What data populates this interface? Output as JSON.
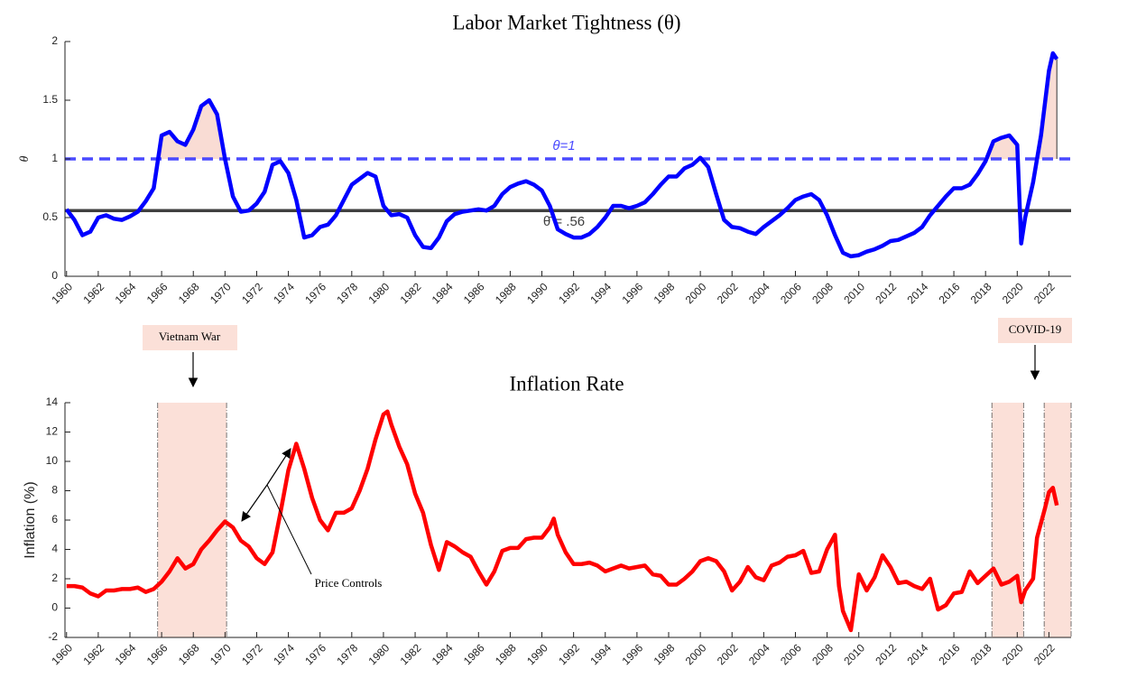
{
  "chart_data": [
    {
      "type": "line",
      "title": "Labor Market Tightness (θ)",
      "ylabel": "θ",
      "color": "#0000ff",
      "xlim": [
        1959.9,
        2023.4
      ],
      "ylim": [
        0,
        2
      ],
      "xticks": [
        1960,
        1962,
        1964,
        1966,
        1968,
        1970,
        1972,
        1974,
        1976,
        1978,
        1980,
        1982,
        1984,
        1986,
        1988,
        1990,
        1992,
        1994,
        1996,
        1998,
        2000,
        2002,
        2004,
        2006,
        2008,
        2010,
        2012,
        2014,
        2016,
        2018,
        2020,
        2022
      ],
      "yticks": [
        0,
        0.5,
        1,
        1.5,
        2
      ],
      "ref_lines": [
        {
          "value": 1,
          "label": "θ=1",
          "color": "#4a4aff",
          "dash": true
        },
        {
          "value": 0.56,
          "label": "θ̄ = .56",
          "color": "#404040",
          "dash": false
        }
      ],
      "shade": true,
      "shade_color": "#f9dcd4",
      "x": [
        1960,
        1960.5,
        1961,
        1961.5,
        1962,
        1962.5,
        1963,
        1963.5,
        1964,
        1964.5,
        1965,
        1965.5,
        1966,
        1966.5,
        1967,
        1967.5,
        1968,
        1968.5,
        1969,
        1969.5,
        1970,
        1970.5,
        1971,
        1971.5,
        1972,
        1972.5,
        1973,
        1973.5,
        1974,
        1974.5,
        1975,
        1975.5,
        1976,
        1976.5,
        1977,
        1977.5,
        1978,
        1978.5,
        1979,
        1979.5,
        1980,
        1980.5,
        1981,
        1981.5,
        1982,
        1982.5,
        1983,
        1983.5,
        1984,
        1984.5,
        1985,
        1985.5,
        1986,
        1986.5,
        1987,
        1987.5,
        1988,
        1988.5,
        1989,
        1989.5,
        1990,
        1990.5,
        1991,
        1991.5,
        1992,
        1992.5,
        1993,
        1993.5,
        1994,
        1994.5,
        1995,
        1995.5,
        1996,
        1996.5,
        1997,
        1997.5,
        1998,
        1998.5,
        1999,
        1999.5,
        2000,
        2000.5,
        2001,
        2001.5,
        2002,
        2002.5,
        2003,
        2003.5,
        2004,
        2004.5,
        2005,
        2005.5,
        2006,
        2006.5,
        2007,
        2007.5,
        2008,
        2008.5,
        2009,
        2009.5,
        2010,
        2010.5,
        2011,
        2011.5,
        2012,
        2012.5,
        2013,
        2013.5,
        2014,
        2014.5,
        2015,
        2015.5,
        2016,
        2016.5,
        2017,
        2017.5,
        2018,
        2018.5,
        2019,
        2019.5,
        2020,
        2020.25,
        2020.5,
        2021,
        2021.5,
        2022,
        2022.25,
        2022.5
      ],
      "values": [
        0.57,
        0.48,
        0.35,
        0.38,
        0.5,
        0.52,
        0.49,
        0.48,
        0.51,
        0.55,
        0.64,
        0.75,
        1.2,
        1.23,
        1.15,
        1.12,
        1.25,
        1.45,
        1.5,
        1.38,
        1.0,
        0.68,
        0.55,
        0.56,
        0.62,
        0.72,
        0.95,
        0.98,
        0.88,
        0.65,
        0.33,
        0.35,
        0.42,
        0.44,
        0.52,
        0.65,
        0.78,
        0.83,
        0.88,
        0.85,
        0.6,
        0.52,
        0.53,
        0.5,
        0.35,
        0.25,
        0.24,
        0.33,
        0.47,
        0.53,
        0.55,
        0.56,
        0.57,
        0.56,
        0.6,
        0.7,
        0.76,
        0.79,
        0.81,
        0.78,
        0.73,
        0.6,
        0.4,
        0.36,
        0.33,
        0.33,
        0.36,
        0.42,
        0.5,
        0.6,
        0.6,
        0.58,
        0.6,
        0.63,
        0.7,
        0.78,
        0.85,
        0.85,
        0.92,
        0.95,
        1.01,
        0.93,
        0.7,
        0.48,
        0.42,
        0.41,
        0.38,
        0.36,
        0.42,
        0.47,
        0.52,
        0.58,
        0.65,
        0.68,
        0.7,
        0.65,
        0.52,
        0.35,
        0.2,
        0.17,
        0.18,
        0.21,
        0.23,
        0.26,
        0.3,
        0.31,
        0.34,
        0.37,
        0.42,
        0.52,
        0.6,
        0.68,
        0.75,
        0.75,
        0.78,
        0.87,
        0.98,
        1.15,
        1.18,
        1.2,
        1.12,
        0.28,
        0.5,
        0.8,
        1.2,
        1.75,
        1.9,
        1.85
      ]
    },
    {
      "type": "line",
      "title": "Inflation Rate",
      "ylabel": "Inflation (%)",
      "color": "#ff0000",
      "xlim": [
        1959.9,
        2023.4
      ],
      "ylim": [
        -2,
        14
      ],
      "xticks": [
        1960,
        1962,
        1964,
        1966,
        1968,
        1970,
        1972,
        1974,
        1976,
        1978,
        1980,
        1982,
        1984,
        1986,
        1988,
        1990,
        1992,
        1994,
        1996,
        1998,
        2000,
        2002,
        2004,
        2006,
        2008,
        2010,
        2012,
        2014,
        2016,
        2018,
        2020,
        2022
      ],
      "yticks": [
        -2,
        0,
        2,
        4,
        6,
        8,
        10,
        12,
        14
      ],
      "shaded_periods": [
        [
          1965.75,
          1970.1
        ],
        [
          2018.4,
          2020.4
        ],
        [
          2021.7,
          2023.4
        ]
      ],
      "shade_color": "#fbe0d8",
      "annotations": [
        "Vietnam War",
        "COVID-19",
        "Price Controls"
      ],
      "x": [
        1960,
        1960.5,
        1961,
        1961.5,
        1962,
        1962.5,
        1963,
        1963.5,
        1964,
        1964.5,
        1965,
        1965.5,
        1966,
        1966.5,
        1967,
        1967.5,
        1968,
        1968.5,
        1969,
        1969.5,
        1970,
        1970.5,
        1971,
        1971.5,
        1972,
        1972.5,
        1973,
        1973.5,
        1974,
        1974.5,
        1975,
        1975.5,
        1976,
        1976.5,
        1977,
        1977.5,
        1978,
        1978.5,
        1979,
        1979.5,
        1980,
        1980.25,
        1980.5,
        1981,
        1981.5,
        1982,
        1982.5,
        1983,
        1983.5,
        1984,
        1984.5,
        1985,
        1985.5,
        1986,
        1986.5,
        1987,
        1987.5,
        1988,
        1988.5,
        1989,
        1989.5,
        1990,
        1990.5,
        1990.75,
        1991,
        1991.5,
        1992,
        1992.5,
        1993,
        1993.5,
        1994,
        1994.5,
        1995,
        1995.5,
        1996,
        1996.5,
        1997,
        1997.5,
        1998,
        1998.5,
        1999,
        1999.5,
        2000,
        2000.5,
        2001,
        2001.5,
        2002,
        2002.5,
        2003,
        2003.5,
        2004,
        2004.5,
        2005,
        2005.5,
        2006,
        2006.5,
        2007,
        2007.5,
        2008,
        2008.5,
        2008.75,
        2009,
        2009.5,
        2010,
        2010.5,
        2011,
        2011.5,
        2012,
        2012.5,
        2013,
        2013.5,
        2014,
        2014.5,
        2015,
        2015.5,
        2016,
        2016.5,
        2017,
        2017.5,
        2018,
        2018.5,
        2019,
        2019.5,
        2020,
        2020.25,
        2020.5,
        2021,
        2021.25,
        2021.75,
        2022,
        2022.25,
        2022.5
      ],
      "values": [
        1.5,
        1.5,
        1.4,
        1.0,
        0.8,
        1.2,
        1.2,
        1.3,
        1.3,
        1.4,
        1.1,
        1.3,
        1.8,
        2.5,
        3.4,
        2.7,
        3.0,
        4.0,
        4.6,
        5.3,
        5.9,
        5.5,
        4.6,
        4.2,
        3.4,
        3.0,
        3.8,
        6.5,
        9.4,
        11.2,
        9.5,
        7.5,
        6.0,
        5.3,
        6.5,
        6.5,
        6.8,
        8.0,
        9.5,
        11.5,
        13.2,
        13.4,
        12.5,
        11.0,
        9.8,
        7.8,
        6.5,
        4.3,
        2.6,
        4.5,
        4.2,
        3.8,
        3.5,
        2.5,
        1.6,
        2.5,
        3.9,
        4.1,
        4.1,
        4.7,
        4.8,
        4.8,
        5.5,
        6.1,
        5.0,
        3.8,
        3.0,
        3.0,
        3.1,
        2.9,
        2.5,
        2.7,
        2.9,
        2.7,
        2.8,
        2.9,
        2.3,
        2.2,
        1.6,
        1.6,
        2.0,
        2.5,
        3.2,
        3.4,
        3.2,
        2.5,
        1.2,
        1.8,
        2.8,
        2.1,
        1.9,
        2.9,
        3.1,
        3.5,
        3.6,
        3.9,
        2.4,
        2.5,
        4.0,
        5.0,
        1.5,
        -0.2,
        -1.5,
        2.3,
        1.2,
        2.1,
        3.6,
        2.8,
        1.7,
        1.8,
        1.5,
        1.3,
        2.0,
        -0.1,
        0.2,
        1.0,
        1.1,
        2.5,
        1.7,
        2.2,
        2.7,
        1.6,
        1.8,
        2.2,
        0.4,
        1.2,
        2.0,
        4.8,
        6.8,
        7.9,
        8.2,
        7.0
      ]
    }
  ]
}
